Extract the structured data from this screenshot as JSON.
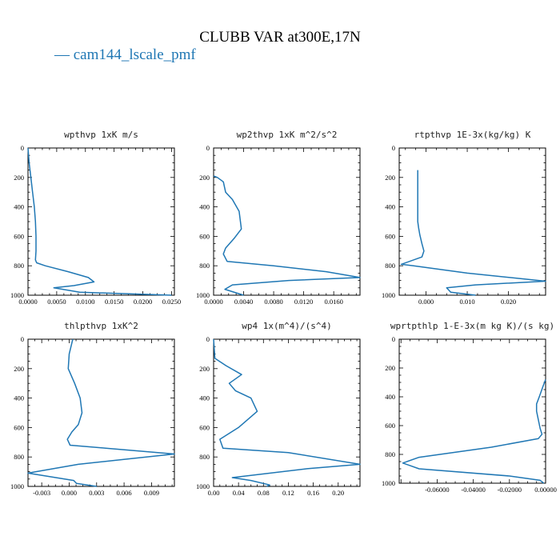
{
  "figure": {
    "title": "CLUBB VAR at300E,17N",
    "legend": [
      {
        "label": "— cam144_lscale_pmf",
        "color": "#1f77b4"
      }
    ]
  },
  "chart_data": [
    {
      "type": "line",
      "title": "wpthvp   1xK m/s",
      "xlim": [
        0,
        0.0255
      ],
      "ylim": [
        1000,
        0
      ],
      "xticks": [
        0,
        0.005,
        0.01,
        0.015,
        0.02,
        0.025
      ],
      "xtick_labels": [
        "0.0000",
        "0.0050",
        "0.0100",
        "0.0150",
        "0.0200",
        "0.0250"
      ],
      "yticks": [
        0,
        200,
        400,
        600,
        800,
        1000
      ],
      "ytick_labels": [
        "0",
        "200",
        "400",
        "600",
        "800",
        "1000"
      ],
      "series": [
        {
          "name": "cam144_lscale_pmf",
          "color": "#1f77b4",
          "x": [
            0,
            0.0002,
            0.0005,
            0.0008,
            0.0011,
            0.0013,
            0.0014,
            0.0014,
            0.0013,
            0.0015,
            0.003,
            0.007,
            0.0105,
            0.0115,
            0.008,
            0.0045,
            0.009,
            0.025
          ],
          "y": [
            0,
            100,
            200,
            300,
            400,
            500,
            600,
            700,
            760,
            780,
            800,
            840,
            880,
            910,
            935,
            950,
            980,
            1000
          ]
        }
      ]
    },
    {
      "type": "line",
      "title": "wp2thvp   1xK m^2/s^2",
      "xlim": [
        0,
        0.0195
      ],
      "ylim": [
        1000,
        0
      ],
      "xticks": [
        0,
        0.004,
        0.008,
        0.012,
        0.016
      ],
      "xtick_labels": [
        "0.0000",
        "0.0040",
        "0.0080",
        "0.0120",
        "0.0160"
      ],
      "yticks": [
        0,
        200,
        400,
        600,
        800,
        1000
      ],
      "ytick_labels": [
        "0",
        "200",
        "400",
        "600",
        "800",
        "1000"
      ],
      "series": [
        {
          "name": "cam144_lscale_pmf",
          "color": "#1f77b4",
          "x": [
            0,
            0.0005,
            0.0013,
            0.0016,
            0.0025,
            0.0034,
            0.0037,
            0.0028,
            0.0016,
            0.0013,
            0.0018,
            0.008,
            0.015,
            0.0195,
            0.01,
            0.0025,
            0.0015,
            0.004
          ],
          "y": [
            190,
            200,
            230,
            300,
            350,
            430,
            550,
            610,
            680,
            720,
            770,
            800,
            840,
            880,
            900,
            930,
            960,
            1000
          ]
        }
      ]
    },
    {
      "type": "line",
      "title": "rtpthvp   1E-3x(kg/kg) K",
      "xlim": [
        -0.0065,
        0.029
      ],
      "ylim": [
        1000,
        0
      ],
      "xticks": [
        0,
        0.01,
        0.02
      ],
      "xtick_labels": [
        "0.000",
        "0.010",
        "0.020"
      ],
      "yticks": [
        0,
        200,
        400,
        600,
        800,
        1000
      ],
      "ytick_labels": [
        "0",
        "200",
        "400",
        "600",
        "800",
        "1000"
      ],
      "series": [
        {
          "name": "cam144_lscale_pmf",
          "color": "#1f77b4",
          "x": [
            -0.002,
            -0.002,
            -0.002,
            -0.0018,
            -0.0015,
            -0.001,
            -0.0005,
            -0.001,
            -0.006,
            -0.003,
            0.01,
            0.029,
            0.012,
            0.005,
            0.006,
            0.012
          ],
          "y": [
            150,
            300,
            500,
            540,
            590,
            650,
            700,
            740,
            790,
            800,
            850,
            905,
            930,
            950,
            980,
            1000
          ]
        }
      ]
    },
    {
      "type": "line",
      "title": "thlpthvp   1xK^2",
      "xlim": [
        -0.0045,
        0.0115
      ],
      "ylim": [
        1000,
        0
      ],
      "xticks": [
        -0.003,
        0,
        0.003,
        0.006,
        0.009
      ],
      "xtick_labels": [
        "-0.003",
        "0.000",
        "0.003",
        "0.006",
        "0.009"
      ],
      "yticks": [
        0,
        200,
        400,
        600,
        800,
        1000
      ],
      "ytick_labels": [
        "0",
        "200",
        "400",
        "600",
        "800",
        "1000"
      ],
      "series": [
        {
          "name": "cam144_lscale_pmf",
          "color": "#1f77b4",
          "x": [
            0.0004,
            0,
            -0.0001,
            0.0006,
            0.0012,
            0.0014,
            0.001,
            0.0003,
            -0.0002,
            0.0001,
            0.004,
            0.0115,
            0.007,
            0.001,
            -0.0045,
            0.0005,
            0.0008,
            0.003
          ],
          "y": [
            0,
            100,
            200,
            300,
            400,
            500,
            580,
            630,
            680,
            720,
            740,
            780,
            810,
            850,
            910,
            960,
            980,
            1000
          ]
        }
      ]
    },
    {
      "type": "line",
      "title": "wp4   1x(m^4)/(s^4)",
      "xlim": [
        0,
        0.235
      ],
      "ylim": [
        1000,
        0
      ],
      "xticks": [
        0,
        0.04,
        0.08,
        0.12,
        0.16,
        0.2
      ],
      "xtick_labels": [
        "0.00",
        "0.04",
        "0.08",
        "0.12",
        "0.16",
        "0.20"
      ],
      "yticks": [
        0,
        200,
        400,
        600,
        800,
        1000
      ],
      "ytick_labels": [
        "0",
        "200",
        "400",
        "600",
        "800",
        "1000"
      ],
      "series": [
        {
          "name": "cam144_lscale_pmf",
          "color": "#1f77b4",
          "x": [
            0,
            0.002,
            0.02,
            0.045,
            0.025,
            0.035,
            0.06,
            0.07,
            0.04,
            0.01,
            0.015,
            0.12,
            0.235,
            0.15,
            0.03,
            0.06,
            0.09,
            0.085
          ],
          "y": [
            0,
            130,
            180,
            240,
            300,
            350,
            400,
            490,
            600,
            680,
            740,
            770,
            850,
            880,
            940,
            960,
            990,
            1000
          ]
        }
      ]
    },
    {
      "type": "line",
      "title": "wprtpthlp   1-E-3x(m kg K)/(s kg)",
      "xlim": [
        -0.081,
        0.0
      ],
      "ylim": [
        1000,
        0
      ],
      "xticks": [
        -0.06,
        -0.04,
        -0.02,
        0.0
      ],
      "xtick_labels": [
        "-0.06000",
        "-0.04000",
        "-0.02000",
        "0.00000"
      ],
      "yticks": [
        0,
        200,
        400,
        600,
        800,
        1000
      ],
      "ytick_labels": [
        "0",
        "200",
        "400",
        "600",
        "800",
        "1000"
      ],
      "series": [
        {
          "name": "cam144_lscale_pmf",
          "color": "#1f77b4",
          "x": [
            0,
            -0.0015,
            -0.0035,
            -0.005,
            -0.005,
            -0.003,
            -0.002,
            -0.004,
            -0.03,
            -0.07,
            -0.079,
            -0.07,
            -0.02,
            -0.003,
            -0.001
          ],
          "y": [
            280,
            330,
            400,
            450,
            500,
            620,
            660,
            690,
            750,
            820,
            860,
            900,
            950,
            980,
            1000
          ]
        }
      ]
    }
  ]
}
